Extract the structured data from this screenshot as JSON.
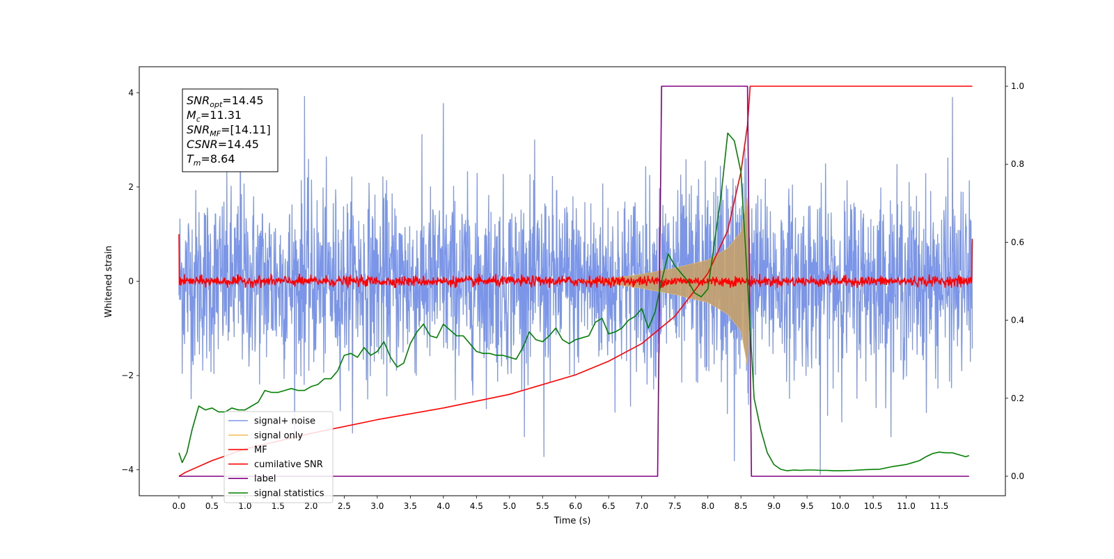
{
  "chart_data": {
    "type": "line",
    "xlabel": "Time (s)",
    "ylabel": "Whitened strain",
    "xlim": [
      -0.6,
      12.5
    ],
    "ylim": [
      -4.55,
      4.55
    ],
    "y2lim": [
      -0.05,
      1.05
    ],
    "xticks": [
      0.0,
      0.5,
      1.0,
      1.5,
      2.0,
      2.5,
      3.0,
      3.5,
      4.0,
      4.5,
      5.0,
      5.5,
      6.0,
      6.5,
      7.0,
      7.5,
      8.0,
      8.5,
      9.0,
      9.5,
      10.0,
      10.5,
      11.0,
      11.5
    ],
    "xtick_labels": [
      "0.0",
      "0.5",
      "1.0",
      "1.5",
      "2.0",
      "2.5",
      "3.0",
      "3.5",
      "4.0",
      "4.5",
      "5.0",
      "5.5",
      "6.0",
      "6.5",
      "7.0",
      "7.5",
      "8.0",
      "8.5",
      "9.0",
      "9.5",
      "10.0",
      "10.5",
      "11.0",
      "11.5"
    ],
    "yticks": [
      -4,
      -2,
      0,
      2,
      4
    ],
    "ytick_labels": [
      "−4",
      "−2",
      "0",
      "2",
      "4"
    ],
    "y2ticks": [
      0.0,
      0.2,
      0.4,
      0.6,
      0.8,
      1.0
    ],
    "y2tick_labels": [
      "0.0",
      "0.2",
      "0.4",
      "0.6",
      "0.8",
      "1.0"
    ],
    "grid": false,
    "legend_position": "lower-left",
    "annotation_box": {
      "lines": [
        {
          "main": "SNR",
          "sub": "opt",
          "rest": "=14.45"
        },
        {
          "main": "M",
          "sub": "c",
          "rest": "=11.31"
        },
        {
          "main": "SNR",
          "sub": "MF",
          "rest": "=[14.11]"
        },
        {
          "main": "CSNR",
          "sub": "",
          "rest": "=14.45"
        },
        {
          "main": "T",
          "sub": "m",
          "rest": "=8.64"
        }
      ]
    },
    "series": [
      {
        "name": "signal+ noise",
        "axis": "left",
        "color": "#7b96e8",
        "x_range": [
          0.0,
          12.0
        ],
        "note": "whitened noise plus chirp, amplitude about ±2 with spikes to about ±3.7",
        "peaks": [
          {
            "x": 0.93,
            "y": 4.08
          },
          {
            "x": 1.9,
            "y": 3.92
          },
          {
            "x": 4.0,
            "y": 3.77
          },
          {
            "x": 11.7,
            "y": 3.9
          },
          {
            "x": 9.7,
            "y": -4.1
          },
          {
            "x": 5.52,
            "y": -3.72
          },
          {
            "x": 8.4,
            "y": -3.81
          }
        ]
      },
      {
        "name": "signal only",
        "axis": "left",
        "color": "#c4a06b",
        "note": "chirp envelope growing from about 6.0 s, max amplitude about 1.8 at 8.6 s",
        "envelope": {
          "x": [
            6.0,
            6.5,
            7.0,
            7.5,
            8.0,
            8.3,
            8.5,
            8.6,
            8.65
          ],
          "amplitude": [
            0.0,
            0.05,
            0.15,
            0.28,
            0.45,
            0.7,
            1.05,
            1.8,
            0.0
          ]
        }
      },
      {
        "name": "MF",
        "axis": "left",
        "color": "#ff0000",
        "note": "matched filter output, noise band about ±0.15 with spikes of 1.0 at both edges",
        "x_range": [
          0.0,
          12.0
        ],
        "edge_values": [
          1.0,
          0.9
        ]
      },
      {
        "name": "cumilative SNR",
        "axis": "right",
        "color": "#ff0000",
        "x": [
          0.0,
          0.1,
          0.5,
          1.0,
          2.0,
          3.0,
          4.0,
          5.0,
          6.0,
          6.5,
          7.0,
          7.5,
          8.0,
          8.3,
          8.5,
          8.6,
          8.64,
          8.65,
          12.0
        ],
        "values": [
          0.0,
          0.01,
          0.04,
          0.07,
          0.11,
          0.145,
          0.175,
          0.21,
          0.26,
          0.295,
          0.34,
          0.41,
          0.52,
          0.63,
          0.78,
          0.9,
          1.0,
          1.0,
          1.0
        ]
      },
      {
        "name": "label",
        "axis": "right",
        "color": "#800080",
        "x": [
          0.0,
          7.24,
          7.3,
          8.6,
          8.66,
          11.95
        ],
        "values": [
          0.0,
          0.0,
          1.0,
          1.0,
          0.0,
          0.0
        ]
      },
      {
        "name": "signal statistics",
        "axis": "right",
        "color": "#008000",
        "x": [
          0.0,
          0.05,
          0.12,
          0.2,
          0.3,
          0.4,
          0.5,
          0.6,
          0.7,
          0.8,
          0.9,
          1.0,
          1.1,
          1.2,
          1.3,
          1.4,
          1.5,
          1.6,
          1.7,
          1.8,
          1.9,
          2.0,
          2.1,
          2.2,
          2.3,
          2.4,
          2.5,
          2.6,
          2.7,
          2.8,
          2.9,
          3.0,
          3.1,
          3.2,
          3.3,
          3.4,
          3.5,
          3.6,
          3.7,
          3.8,
          3.9,
          4.0,
          4.1,
          4.2,
          4.3,
          4.4,
          4.5,
          4.6,
          4.7,
          4.8,
          4.9,
          5.0,
          5.1,
          5.2,
          5.3,
          5.4,
          5.5,
          5.6,
          5.7,
          5.8,
          5.9,
          6.0,
          6.1,
          6.2,
          6.3,
          6.4,
          6.5,
          6.6,
          6.7,
          6.8,
          6.9,
          7.0,
          7.1,
          7.2,
          7.3,
          7.4,
          7.5,
          7.6,
          7.7,
          7.8,
          7.9,
          8.0,
          8.1,
          8.2,
          8.3,
          8.4,
          8.5,
          8.6,
          8.7,
          8.8,
          8.9,
          9.0,
          9.1,
          9.2,
          9.3,
          9.4,
          9.5,
          9.6,
          9.7,
          9.8,
          9.9,
          10.0,
          10.2,
          10.4,
          10.6,
          10.8,
          11.0,
          11.1,
          11.2,
          11.3,
          11.4,
          11.5,
          11.6,
          11.7,
          11.8,
          11.9,
          11.95
        ],
        "values": [
          0.06,
          0.035,
          0.06,
          0.12,
          0.18,
          0.17,
          0.175,
          0.165,
          0.165,
          0.175,
          0.17,
          0.17,
          0.18,
          0.19,
          0.22,
          0.215,
          0.215,
          0.22,
          0.225,
          0.22,
          0.22,
          0.23,
          0.235,
          0.25,
          0.25,
          0.27,
          0.31,
          0.315,
          0.305,
          0.33,
          0.31,
          0.32,
          0.345,
          0.305,
          0.28,
          0.29,
          0.34,
          0.37,
          0.39,
          0.36,
          0.355,
          0.39,
          0.375,
          0.36,
          0.36,
          0.34,
          0.32,
          0.315,
          0.315,
          0.31,
          0.31,
          0.305,
          0.3,
          0.33,
          0.37,
          0.35,
          0.345,
          0.36,
          0.38,
          0.35,
          0.34,
          0.35,
          0.355,
          0.36,
          0.395,
          0.405,
          0.365,
          0.37,
          0.38,
          0.4,
          0.41,
          0.43,
          0.38,
          0.42,
          0.5,
          0.57,
          0.54,
          0.52,
          0.5,
          0.47,
          0.46,
          0.48,
          0.6,
          0.72,
          0.88,
          0.86,
          0.78,
          0.5,
          0.2,
          0.12,
          0.06,
          0.03,
          0.018,
          0.014,
          0.016,
          0.015,
          0.016,
          0.016,
          0.015,
          0.015,
          0.014,
          0.014,
          0.015,
          0.017,
          0.018,
          0.025,
          0.03,
          0.035,
          0.04,
          0.05,
          0.058,
          0.062,
          0.06,
          0.06,
          0.055,
          0.05,
          0.053
        ]
      }
    ]
  }
}
